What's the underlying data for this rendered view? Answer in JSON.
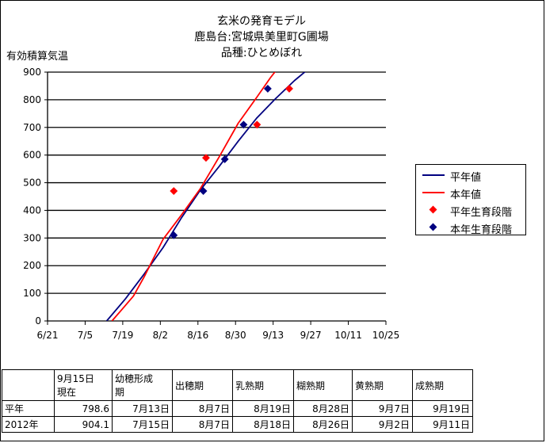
{
  "title": {
    "line1": "玄米の発育モデル",
    "line2": "鹿島台:宮城県美里町G圃場",
    "line3": "品種:ひとめぼれ"
  },
  "colors": {
    "normal_year": "#000080",
    "this_year": "#ff0000",
    "grid": "#000000"
  },
  "chart_data": {
    "type": "line",
    "ylabel": "有効積算気温",
    "ylim": [
      0,
      900
    ],
    "yticks": [
      0,
      100,
      200,
      300,
      400,
      500,
      600,
      700,
      800,
      900
    ],
    "xlim": [
      "6/21",
      "10/25"
    ],
    "xticks": [
      "6/21",
      "7/5",
      "7/19",
      "8/2",
      "8/16",
      "8/30",
      "9/13",
      "9/27",
      "10/11",
      "10/25"
    ],
    "grid": "horizontal",
    "legend_position": "right",
    "series": [
      {
        "name": "平年値",
        "kind": "line",
        "color": "#000080",
        "points": [
          [
            "7/13",
            0
          ],
          [
            "7/20",
            80
          ],
          [
            "7/27",
            170
          ],
          [
            "8/3",
            265
          ],
          [
            "8/10",
            375
          ],
          [
            "8/17",
            475
          ],
          [
            "8/24",
            560
          ],
          [
            "8/31",
            650
          ],
          [
            "9/7",
            735
          ],
          [
            "9/14",
            805
          ],
          [
            "9/21",
            870
          ],
          [
            "9/25",
            902
          ]
        ]
      },
      {
        "name": "本年値",
        "kind": "line",
        "color": "#ff0000",
        "points": [
          [
            "7/15",
            0
          ],
          [
            "7/19",
            45
          ],
          [
            "7/23",
            90
          ],
          [
            "7/27",
            160
          ],
          [
            "8/3",
            295
          ],
          [
            "8/10",
            385
          ],
          [
            "8/17",
            480
          ],
          [
            "8/24",
            595
          ],
          [
            "8/31",
            715
          ],
          [
            "9/7",
            810
          ],
          [
            "9/12",
            880
          ],
          [
            "9/14",
            905
          ]
        ]
      },
      {
        "name": "平年生育段階",
        "kind": "scatter",
        "color": "#ff0000",
        "points": [
          [
            "8/7",
            470
          ],
          [
            "8/19",
            590
          ],
          [
            "9/7",
            710
          ],
          [
            "9/19",
            840
          ]
        ]
      },
      {
        "name": "本年生育段階",
        "kind": "scatter",
        "color": "#000080",
        "points": [
          [
            "8/7",
            310
          ],
          [
            "8/18",
            470
          ],
          [
            "8/26",
            585
          ],
          [
            "9/2",
            710
          ],
          [
            "9/11",
            840
          ]
        ]
      }
    ]
  },
  "table": {
    "headers": [
      "",
      "9月15日\n現在",
      "幼穂形成\n期",
      "出穂期",
      "乳熟期",
      "糊熟期",
      "黄熟期",
      "成熟期"
    ],
    "rows": [
      {
        "label": "平年",
        "values": [
          "798.6",
          "7月13日",
          "8月7日",
          "8月19日",
          "8月28日",
          "9月7日",
          "9月19日"
        ]
      },
      {
        "label": "2012年",
        "values": [
          "904.1",
          "7月15日",
          "8月7日",
          "8月18日",
          "8月26日",
          "9月2日",
          "9月11日"
        ]
      }
    ]
  }
}
